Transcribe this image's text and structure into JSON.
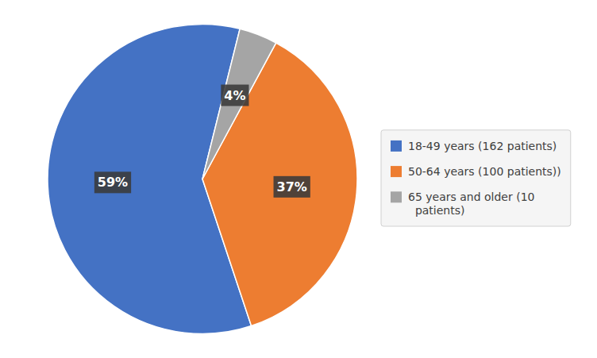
{
  "chart_data": {
    "type": "pie",
    "categories": [
      "18-49 years (162 patients)",
      "50-64 years (100 patients))",
      "65 years and older (10\n  patients)"
    ],
    "values": [
      59,
      37,
      4
    ],
    "value_labels": [
      "59%",
      "37%",
      "4%"
    ],
    "colors": [
      "#4472C4",
      "#ED7D31",
      "#A5A5A5"
    ],
    "data_labels": true,
    "legend": "right"
  }
}
